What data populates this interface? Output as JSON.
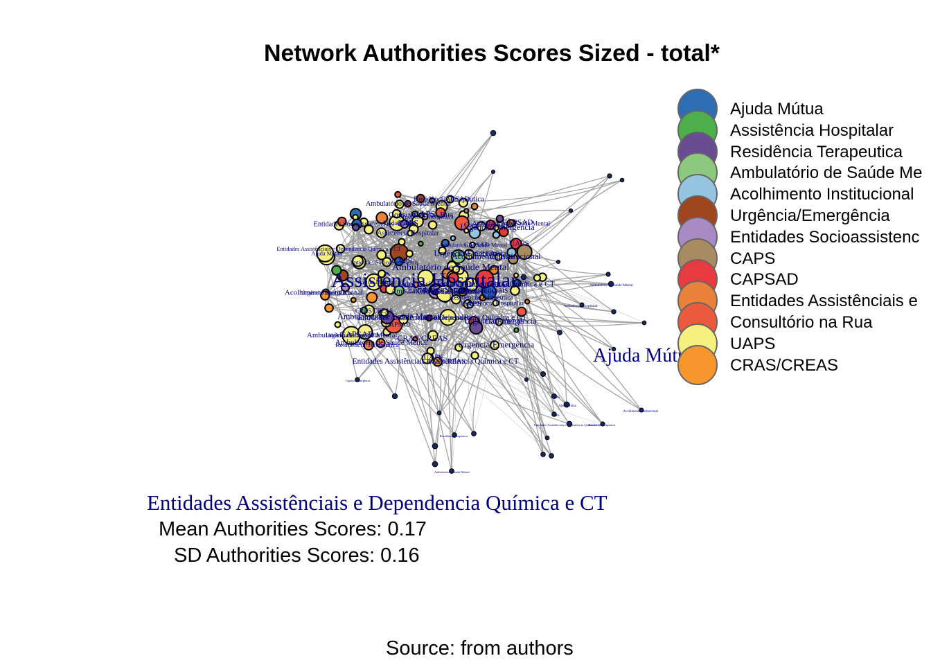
{
  "title": "Network Authorities Scores  Sized - total*",
  "legend": {
    "items": [
      {
        "label": "Ajuda Mútua",
        "color": "#2E6DB4"
      },
      {
        "label": "Assistência Hospitalar",
        "color": "#4DAF4A"
      },
      {
        "label": "Residência Terapeutica",
        "color": "#6A4C93"
      },
      {
        "label": "Ambulatório de Saúde Me",
        "color": "#8CC97E"
      },
      {
        "label": "Acolhimento Institucional",
        "color": "#95C4E0"
      },
      {
        "label": "Urgência/Emergência",
        "color": "#A0461F"
      },
      {
        "label": "Entidades Socioassistenc",
        "color": "#A98BC4"
      },
      {
        "label": "CAPS",
        "color": "#A98B62"
      },
      {
        "label": "CAPSAD",
        "color": "#E83B3F"
      },
      {
        "label": "Entidades Assistênciais e",
        "color": "#E9823A"
      },
      {
        "label": "Consultório na Rua",
        "color": "#EB5A3C"
      },
      {
        "label": "UAPS",
        "color": "#F5F080"
      },
      {
        "label": "CRAS/CREAS",
        "color": "#F8962E"
      }
    ]
  },
  "network": {
    "large_labels": [
      {
        "text": "Assistência Hospitalar"
      },
      {
        "text": "Ajuda Mútua"
      },
      {
        "text": "Ambulatório de Saúde Mental"
      }
    ],
    "node_labels": [
      "Entidades Assistênciais e Dependencia Química e CT",
      "Residência Terapeutica",
      "CRAS/CREAS",
      "UAPS",
      "CAPS",
      "Acolhimento Institucional",
      "Ajuda Mútua",
      "Assistência Hospitalar",
      "Entidades Socioassistenciais",
      "Consultório na Rua",
      "Urgência/Emergência",
      "CAPSAD",
      "Ambulatório de Saúde Mental"
    ]
  },
  "caption": {
    "highlight": "Entidades Assistênciais e Dependencia Química e CT",
    "mean": "Mean Authorities Scores: 0.17",
    "sd": "SD Authorities Scores: 0.16"
  },
  "source": "Source: from authors"
}
